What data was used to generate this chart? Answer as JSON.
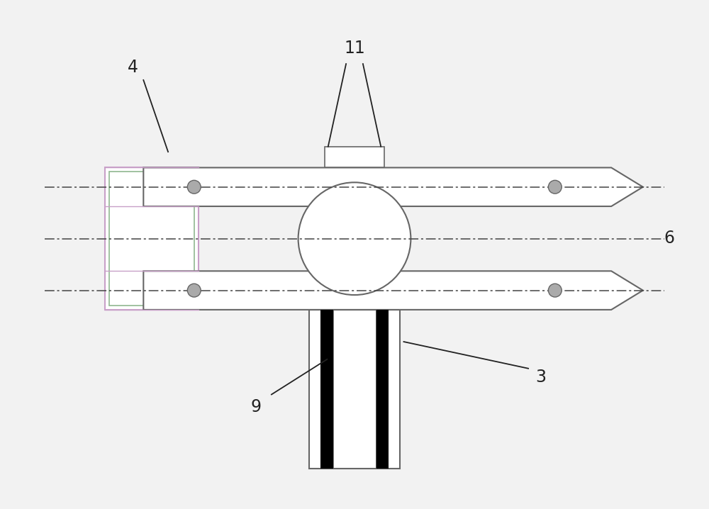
{
  "bg_color": "#f2f2f2",
  "fig_width": 10.0,
  "fig_height": 7.18,
  "label_4": "4",
  "label_11": "11",
  "label_6": "6",
  "label_3": "3",
  "label_9": "9",
  "line_color": "#666666",
  "black": "#000000",
  "green_box_color": "#99aa99",
  "purple_box_color": "#bb99bb",
  "bolt_color": "#999999",
  "ann_color": "#222222"
}
